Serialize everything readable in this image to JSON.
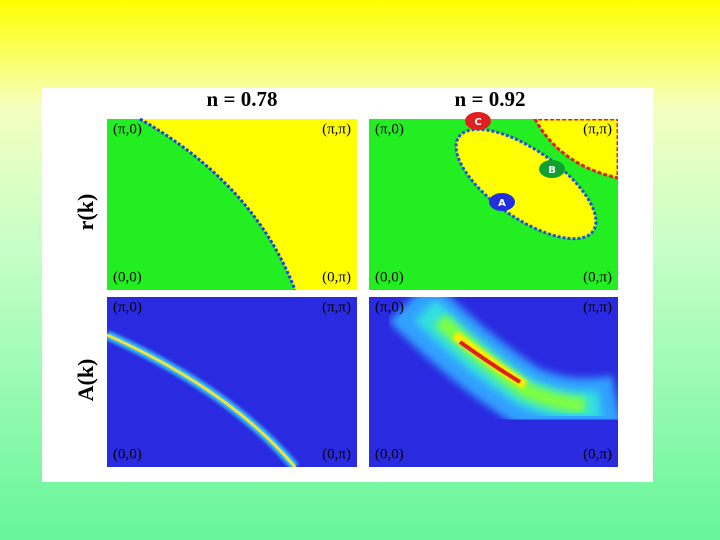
{
  "columns": [
    {
      "title": "n = 0.78"
    },
    {
      "title": "n = 0.92"
    }
  ],
  "rows": [
    {
      "label": "r(k)"
    },
    {
      "label": "A(k)"
    }
  ],
  "panels": [
    {
      "corners": {
        "top_left": "(π,0)",
        "top_right": "(π,π)",
        "bottom_left": "(0,0)",
        "bottom_right": "(0,π)"
      }
    },
    {
      "corners": {
        "top_left": "(π,0)",
        "top_right": "(π,π)",
        "bottom_left": "(0,0)",
        "bottom_right": "(0,π)"
      }
    },
    {
      "corners": {
        "top_left": "(π,0)",
        "top_right": "(π,π)",
        "bottom_left": "(0,0)",
        "bottom_right": "(0,π)"
      }
    },
    {
      "corners": {
        "top_left": "(π,0)",
        "top_right": "(π,π)",
        "bottom_left": "(0,0)",
        "bottom_right": "(0,π)"
      }
    }
  ],
  "markers": [
    {
      "label": "C"
    },
    {
      "label": "B"
    },
    {
      "label": "A"
    }
  ]
}
